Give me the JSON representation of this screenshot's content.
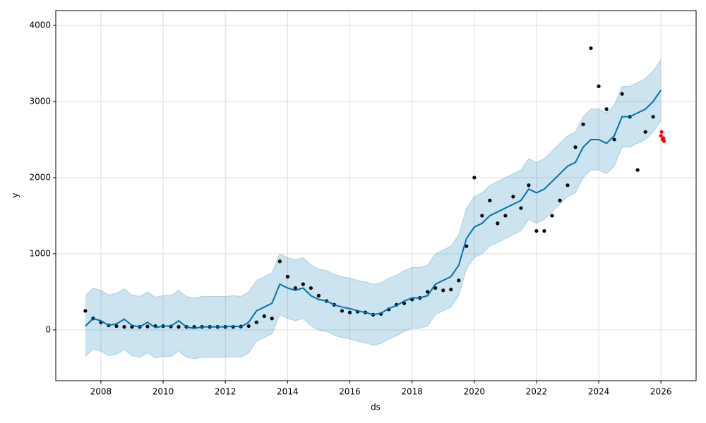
{
  "chart_data": {
    "type": "forecast",
    "x_label": "ds",
    "y_label": "y",
    "x": [
      2007.5,
      2007.75,
      2008,
      2008.25,
      2008.5,
      2008.75,
      2009,
      2009.25,
      2009.5,
      2009.75,
      2010,
      2010.25,
      2010.5,
      2010.75,
      2011,
      2011.25,
      2011.5,
      2011.75,
      2012,
      2012.25,
      2012.5,
      2012.75,
      2013,
      2013.25,
      2013.5,
      2013.75,
      2014,
      2014.25,
      2014.5,
      2014.75,
      2015,
      2015.25,
      2015.5,
      2015.75,
      2016,
      2016.25,
      2016.5,
      2016.75,
      2017,
      2017.25,
      2017.5,
      2017.75,
      2018,
      2018.25,
      2018.5,
      2018.75,
      2019,
      2019.25,
      2019.5,
      2019.75,
      2020,
      2020.25,
      2020.5,
      2020.75,
      2021,
      2021.25,
      2021.5,
      2021.75,
      2022,
      2022.25,
      2022.5,
      2022.75,
      2023,
      2023.25,
      2023.5,
      2023.75,
      2024,
      2024.25,
      2024.5,
      2024.75,
      2025,
      2025.25,
      2025.5,
      2025.75,
      2026
    ],
    "band": {
      "color": "#0072B2",
      "lower": [
        -350,
        -250,
        -280,
        -340,
        -320,
        -260,
        -340,
        -360,
        -300,
        -370,
        -350,
        -350,
        -280,
        -360,
        -380,
        -360,
        -360,
        -360,
        -360,
        -350,
        -360,
        -300,
        -150,
        -100,
        -50,
        200,
        150,
        120,
        150,
        50,
        0,
        -20,
        -70,
        -100,
        -120,
        -150,
        -170,
        -200,
        -180,
        -120,
        -80,
        -20,
        20,
        20,
        50,
        200,
        250,
        300,
        450,
        800,
        950,
        1000,
        1100,
        1150,
        1200,
        1250,
        1300,
        1450,
        1400,
        1450,
        1550,
        1650,
        1750,
        1800,
        2000,
        2100,
        2100,
        2050,
        2150,
        2400,
        2400,
        2450,
        2500,
        2600,
        2750
      ],
      "upper": [
        450,
        550,
        520,
        460,
        480,
        540,
        460,
        440,
        500,
        430,
        450,
        450,
        520,
        440,
        420,
        440,
        440,
        440,
        440,
        450,
        440,
        500,
        650,
        700,
        750,
        1000,
        950,
        920,
        950,
        850,
        800,
        780,
        730,
        700,
        680,
        650,
        630,
        600,
        620,
        680,
        720,
        780,
        820,
        820,
        850,
        1000,
        1050,
        1100,
        1250,
        1600,
        1750,
        1800,
        1900,
        1950,
        2000,
        2050,
        2100,
        2250,
        2200,
        2250,
        2350,
        2450,
        2550,
        2600,
        2800,
        2900,
        2900,
        2850,
        2950,
        3200,
        3200,
        3250,
        3300,
        3400,
        3550
      ]
    },
    "series": [
      {
        "mark": "line",
        "color": "#0072B2",
        "values": [
          50,
          150,
          120,
          60,
          80,
          140,
          60,
          40,
          100,
          30,
          50,
          50,
          120,
          40,
          20,
          40,
          40,
          40,
          40,
          50,
          40,
          100,
          250,
          300,
          350,
          600,
          550,
          520,
          550,
          450,
          400,
          380,
          330,
          300,
          280,
          250,
          230,
          200,
          220,
          280,
          320,
          380,
          420,
          420,
          450,
          600,
          650,
          700,
          850,
          1200,
          1350,
          1400,
          1500,
          1550,
          1600,
          1650,
          1700,
          1850,
          1800,
          1850,
          1950,
          2050,
          2150,
          2200,
          2400,
          2500,
          2500,
          2450,
          2550,
          2800,
          2800,
          2850,
          2900,
          3000,
          3150
        ]
      },
      {
        "mark": "dot",
        "color": "#000000",
        "values": [
          250,
          150,
          100,
          60,
          50,
          40,
          40,
          40,
          45,
          50,
          50,
          45,
          40,
          40,
          40,
          40,
          40,
          40,
          40,
          40,
          45,
          50,
          100,
          180,
          150,
          900,
          700,
          550,
          600,
          550,
          450,
          380,
          330,
          250,
          230,
          240,
          230,
          200,
          210,
          270,
          330,
          350,
          400,
          420,
          500,
          550,
          520,
          530,
          650,
          1100,
          2000,
          1500,
          1700,
          1400,
          1500,
          1750,
          1600,
          1900,
          1300,
          1300,
          1500,
          1700,
          1900,
          2400,
          2700,
          3700,
          3200,
          2900,
          2500,
          3100,
          2800,
          2100,
          2600,
          2800,
          null
        ]
      }
    ],
    "extra_points": {
      "color": "#ff0000",
      "x": [
        2026.0,
        2026.02,
        2026.05,
        2026.08,
        2026.1
      ],
      "values": [
        2550,
        2600,
        2500,
        2520,
        2480
      ]
    },
    "xlim": [
      2006.55,
      2027.13
    ],
    "ylim": [
      -667,
      4194
    ],
    "xticks": [
      2008,
      2010,
      2012,
      2014,
      2016,
      2018,
      2020,
      2022,
      2024,
      2026
    ],
    "yticks": [
      0,
      1000,
      2000,
      3000,
      4000
    ],
    "grid": true
  }
}
